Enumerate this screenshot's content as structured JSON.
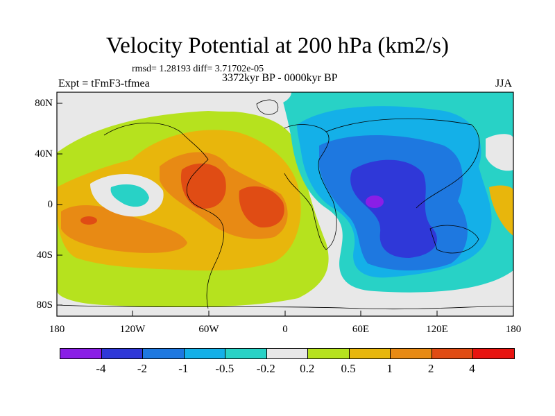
{
  "title": "Velocity Potential at 200 hPa (km2/s)",
  "stats": "rmsd= 1.28193 diff= 3.71702e-05",
  "experiment": "Expt = tFmF3-tfmea",
  "period": "3372kyr BP - 0000kyr BP",
  "season": "JJA",
  "map": {
    "lat_labels": [
      "80N",
      "40N",
      "0",
      "40S",
      "80S"
    ],
    "lon_labels": [
      "180",
      "120W",
      "60W",
      "0",
      "60E",
      "120E",
      "180"
    ]
  },
  "colorbar": {
    "labels": [
      "-4",
      "-2",
      "-1",
      "-0.5",
      "-0.2",
      "0.2",
      "0.5",
      "1",
      "2",
      "4"
    ],
    "colors": [
      "#8a1ee6",
      "#2f38d8",
      "#1e78e0",
      "#14b0e8",
      "#28d2c6",
      "#e8e8e8",
      "#b6e21e",
      "#e8b60c",
      "#e88a14",
      "#e04c14",
      "#e81410"
    ]
  }
}
